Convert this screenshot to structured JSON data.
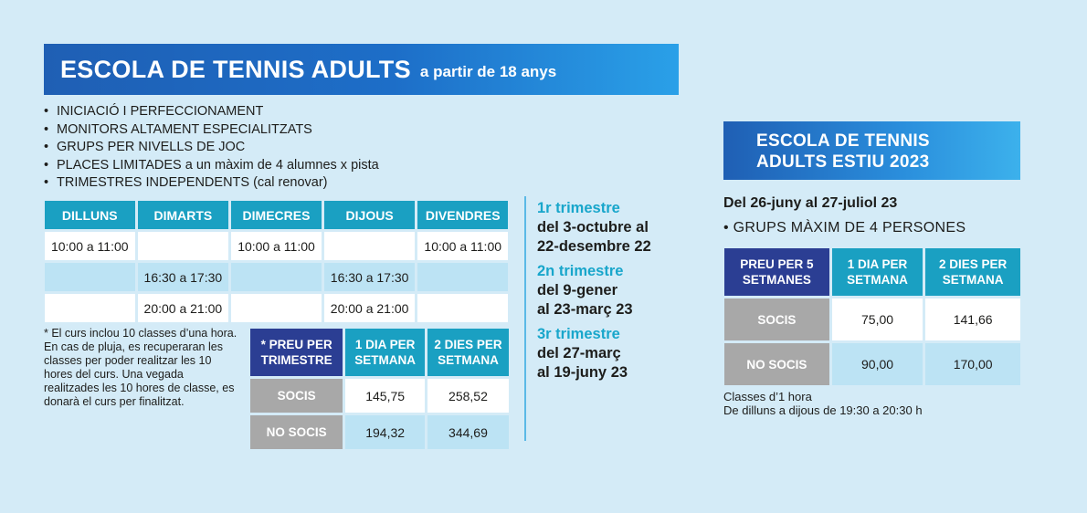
{
  "main": {
    "title": "ESCOLA DE TENNIS ADULTS",
    "subtitle": "a partir de 18 anys",
    "bullets": [
      "INICIACIÓ I PERFECCIONAMENT",
      "MONITORS ALTAMENT ESPECIALITZATS",
      "GRUPS PER NIVELLS DE JOC",
      "PLACES LIMITADES a un màxim de 4 alumnes x pista",
      "TRIMESTRES INDEPENDENTS (cal renovar)"
    ],
    "schedule": {
      "days": [
        "DILLUNS",
        "DIMARTS",
        "DIMECRES",
        "DIJOUS",
        "DIVENDRES"
      ],
      "rows": [
        [
          "10:00 a 11:00",
          "",
          "10:00 a 11:00",
          "",
          "10:00 a 11:00"
        ],
        [
          "",
          "16:30 a 17:30",
          "",
          "16:30 a 17:30",
          ""
        ],
        [
          "",
          "20:00 a 21:00",
          "",
          "20:00 a 21:00",
          ""
        ]
      ]
    },
    "note": "* El curs inclou 10 classes d’una hora. En cas de pluja, es recuperaran les classes per poder realitzar les 10 hores del curs. Una vegada realitzades les 10 hores de classe, es donarà el curs per finalitzat.",
    "price": {
      "headers": [
        "* PREU PER TRIMESTRE",
        "1 DIA PER SETMANA",
        "2 DIES PER SETMANA"
      ],
      "rows": [
        {
          "label": "SOCIS",
          "one_day": "145,75",
          "two_days": "258,52"
        },
        {
          "label": "NO SOCIS",
          "one_day": "194,32",
          "two_days": "344,69"
        }
      ]
    },
    "trimesters": [
      {
        "title": "1r trimestre",
        "line1": "del 3-octubre al",
        "line2": "22-desembre 22"
      },
      {
        "title": "2n trimestre",
        "line1": "del 9-gener",
        "line2": "al 23-març 23"
      },
      {
        "title": "3r trimestre",
        "line1": "del 27-març",
        "line2": "al 19-juny 23"
      }
    ]
  },
  "summer": {
    "title_line1": "ESCOLA DE TENNIS",
    "title_line2": "ADULTS ESTIU 2023",
    "dates": "Del 26-juny al 27-juliol 23",
    "groups": "• GRUPS MÀXIM DE 4 PERSONES",
    "price": {
      "headers": [
        "PREU PER 5 SETMANES",
        "1 DIA PER SETMANA",
        "2 DIES PER SETMANA"
      ],
      "rows": [
        {
          "label": "SOCIS",
          "one_day": "75,00",
          "two_days": "141,66"
        },
        {
          "label": "NO SOCIS",
          "one_day": "90,00",
          "two_days": "170,00"
        }
      ]
    },
    "footer_line1": "Classes d’1 hora",
    "footer_line2": "De dilluns a dijous de 19:30 a 20:30 h"
  },
  "colors": {
    "background": "#d4ebf7",
    "banner_blue": "#1f5fb4",
    "header_teal": "#1aa0c2",
    "header_navy": "#2b3e93",
    "light_blue": "#bce3f4",
    "grey": "#a8a8a8",
    "trimester_title": "#18a6cb"
  }
}
